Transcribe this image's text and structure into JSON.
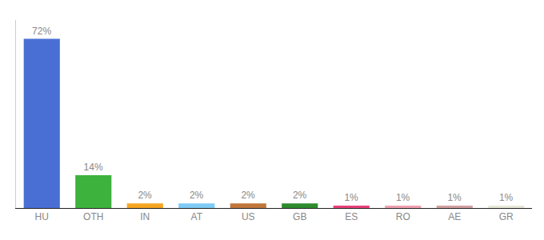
{
  "chart_data": {
    "type": "bar",
    "categories": [
      "HU",
      "OTH",
      "IN",
      "AT",
      "US",
      "GB",
      "ES",
      "RO",
      "AE",
      "GR"
    ],
    "values": [
      72,
      14,
      2,
      2,
      2,
      2,
      1,
      1,
      1,
      1
    ],
    "value_labels": [
      "72%",
      "14%",
      "2%",
      "2%",
      "2%",
      "2%",
      "1%",
      "1%",
      "1%",
      "1%"
    ],
    "colors": [
      "#4a6fd4",
      "#3db33d",
      "#f5a623",
      "#7ecbf5",
      "#c0773a",
      "#2e8b2e",
      "#e8417a",
      "#f0a0b0",
      "#d4a0a0",
      "#e8e8d8"
    ],
    "ylim": [
      0,
      80
    ],
    "grid": false,
    "data_labels": true,
    "tick_labels": "x"
  }
}
